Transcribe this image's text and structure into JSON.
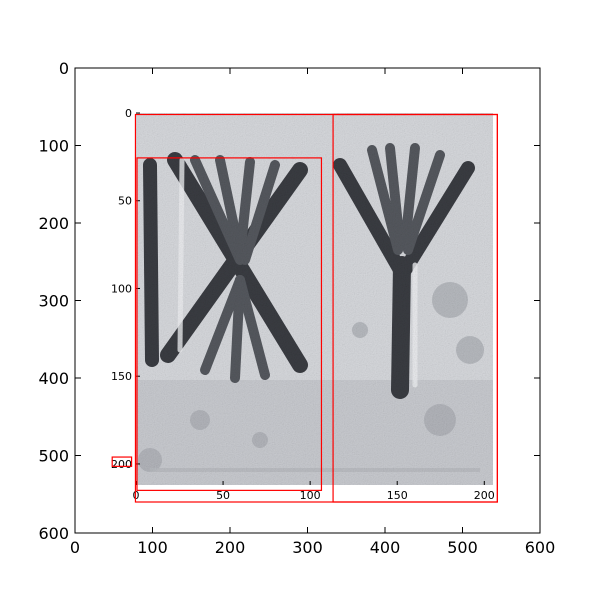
{
  "chart_data": {
    "type": "image",
    "outer_axes": {
      "xlim": [
        0,
        600
      ],
      "ylim": [
        600,
        0
      ],
      "xticks": [
        0,
        100,
        200,
        300,
        400,
        500,
        600
      ],
      "yticks": [
        0,
        100,
        200,
        300,
        400,
        500,
        600
      ],
      "xtick_labels": [
        "0",
        "100",
        "200",
        "300",
        "400",
        "500",
        "600"
      ],
      "ytick_labels": [
        "0",
        "100",
        "200",
        "300",
        "400",
        "500",
        "600"
      ]
    },
    "inner_axes": {
      "xlim": [
        0,
        205
      ],
      "ylim": [
        212,
        0
      ],
      "xticks": [
        0,
        50,
        100,
        150,
        200
      ],
      "yticks": [
        0,
        50,
        100,
        150,
        200
      ],
      "xtick_labels": [
        "0",
        "50",
        "100",
        "150",
        "200"
      ],
      "ytick_labels": [
        "0",
        "50",
        "100",
        "150",
        "200"
      ]
    },
    "boxes": [
      {
        "name": "box-full",
        "x0": 78,
        "y0": 60,
        "x1": 545,
        "y1": 560,
        "color": "#ff0000"
      },
      {
        "name": "box-left",
        "x0": 80,
        "y0": 116,
        "x1": 318,
        "y1": 545,
        "color": "#ff0000"
      },
      {
        "name": "box-right",
        "x0": 333,
        "y0": 60,
        "x1": 545,
        "y1": 560,
        "color": "#ff0000"
      },
      {
        "name": "box-small",
        "x0": 48,
        "y0": 502,
        "x1": 73,
        "y1": 514,
        "color": "#ff0000"
      }
    ],
    "image_description_colors": {
      "stone_light": "#d6d8dc",
      "stone_mid": "#a9acb2",
      "stone_dark": "#3a3c42"
    }
  }
}
